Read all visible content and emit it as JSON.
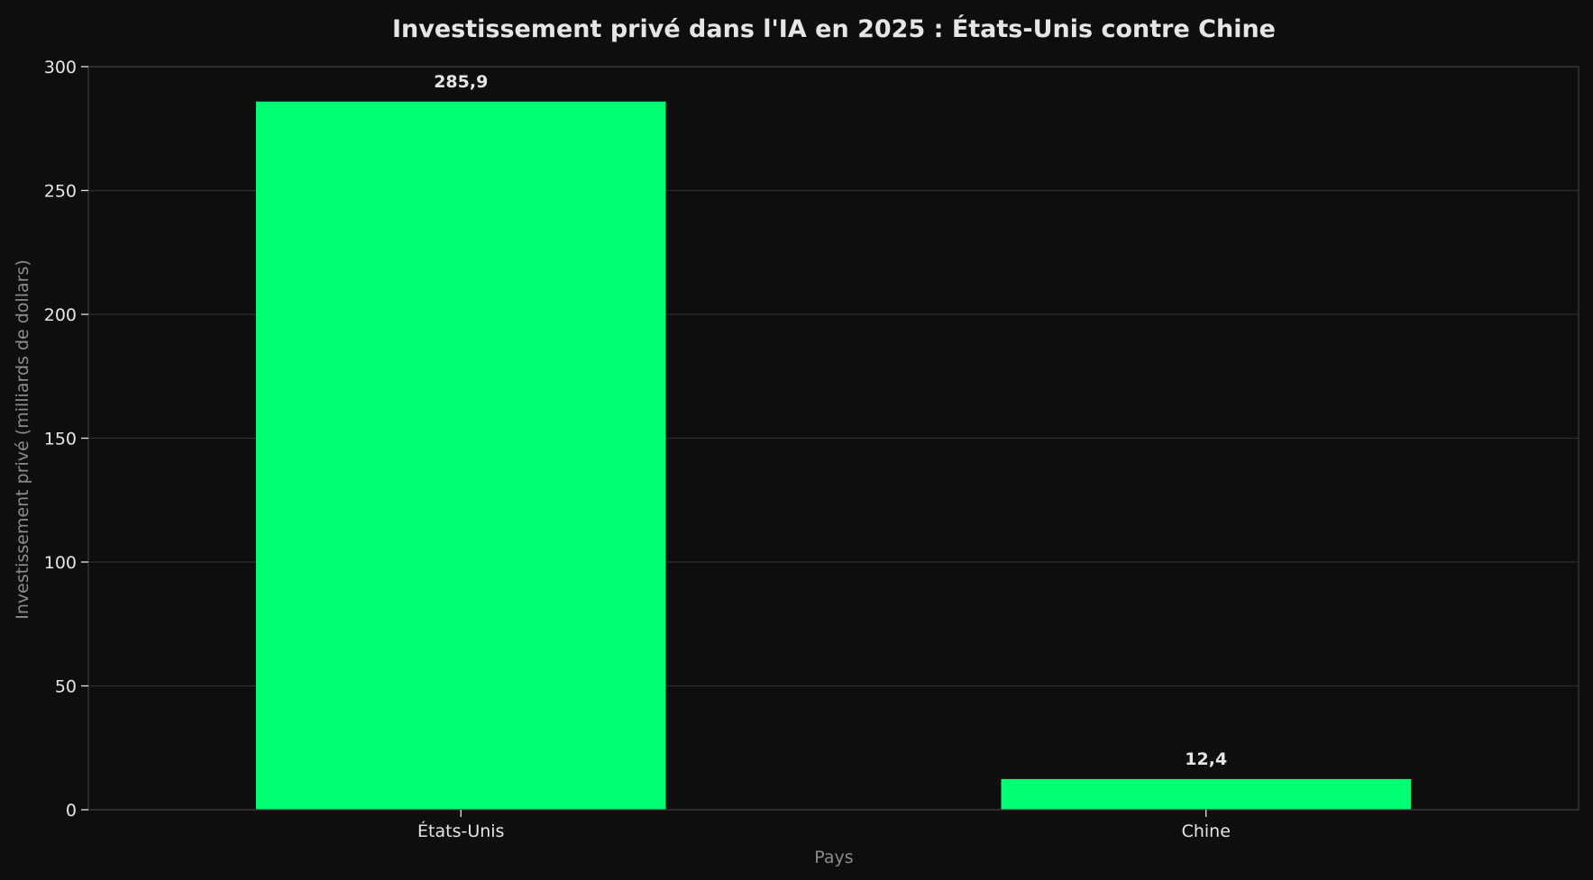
{
  "chart_data": {
    "type": "bar",
    "title": "Investissement privé dans l'IA en 2025 : États-Unis contre Chine",
    "xlabel": "Pays",
    "ylabel": "Investissement privé (milliards de dollars)",
    "categories": [
      "États-Unis",
      "Chine"
    ],
    "values": [
      285.9,
      12.4
    ],
    "value_labels": [
      "285,9",
      "12,4"
    ],
    "ylim": [
      0,
      300
    ],
    "yticks": [
      0,
      50,
      100,
      150,
      200,
      250,
      300
    ],
    "ytick_labels": [
      "0",
      "50",
      "100",
      "150",
      "200",
      "250",
      "300"
    ],
    "grid": true,
    "bar_color": "#00ff73",
    "background": "#0e0e0e"
  }
}
